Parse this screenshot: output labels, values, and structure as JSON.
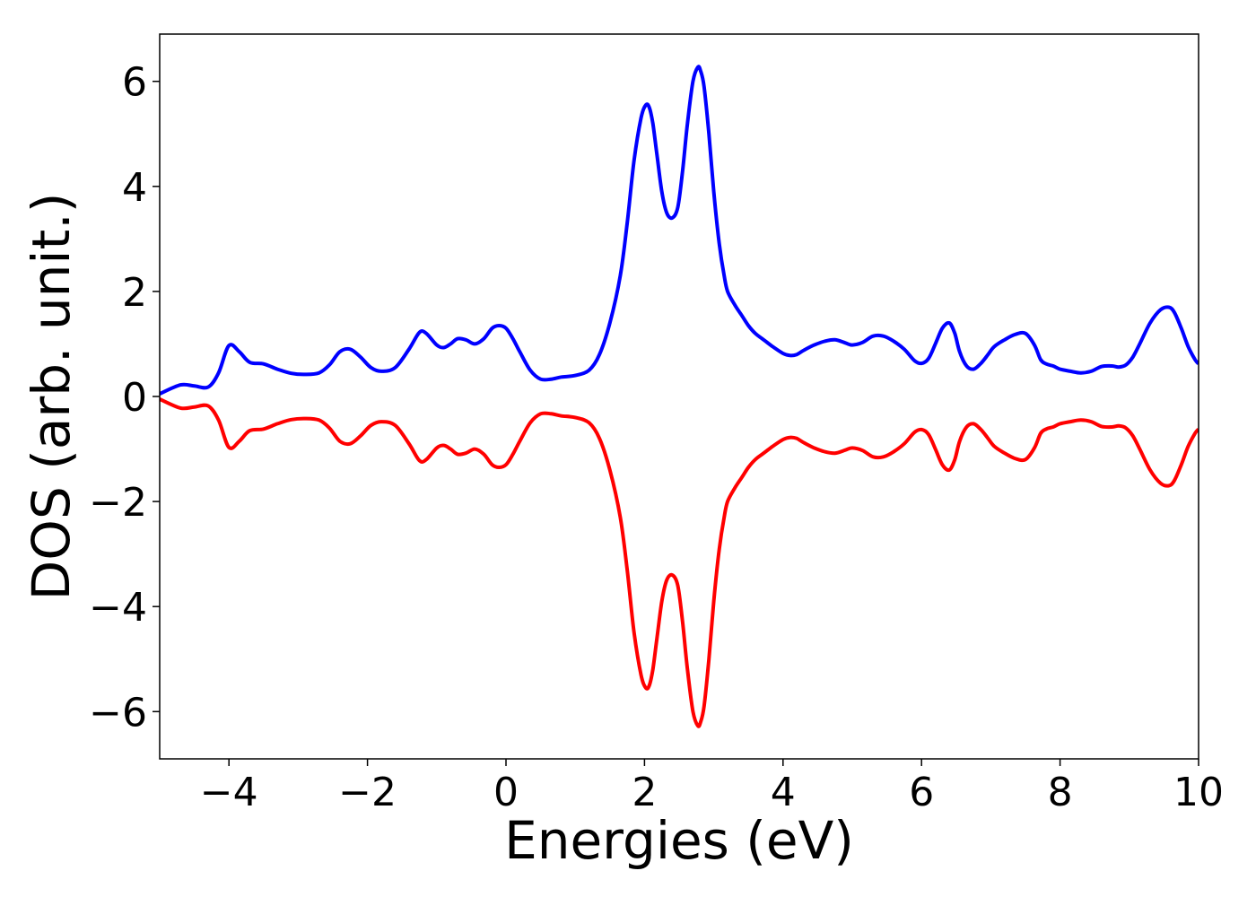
{
  "chart_data": {
    "type": "line",
    "title": "",
    "xlabel": "Energies (eV)",
    "ylabel": "DOS (arb. unit.)",
    "xlim": [
      -5,
      10
    ],
    "ylim": [
      -6.9,
      6.9
    ],
    "x_ticks": [
      -4,
      -2,
      0,
      2,
      4,
      6,
      8,
      10
    ],
    "x_tick_labels": [
      "−4",
      "−2",
      "0",
      "2",
      "4",
      "6",
      "8",
      "10"
    ],
    "y_ticks": [
      -6,
      -4,
      -2,
      0,
      2,
      4,
      6
    ],
    "y_tick_labels": [
      "−6",
      "−4",
      "−2",
      "0",
      "2",
      "4",
      "6"
    ],
    "grid": false,
    "legend": "none",
    "series": [
      {
        "color": "#0000ff",
        "x": [
          -5.0,
          -4.7,
          -4.5,
          -4.3,
          -4.15,
          -4.0,
          -3.85,
          -3.7,
          -3.5,
          -3.3,
          -3.1,
          -2.9,
          -2.7,
          -2.55,
          -2.4,
          -2.25,
          -2.1,
          -1.95,
          -1.8,
          -1.6,
          -1.4,
          -1.25,
          -1.15,
          -1.0,
          -0.9,
          -0.8,
          -0.7,
          -0.58,
          -0.45,
          -0.32,
          -0.2,
          -0.1,
          0.0,
          0.1,
          0.2,
          0.35,
          0.5,
          0.65,
          0.8,
          1.0,
          1.2,
          1.35,
          1.5,
          1.65,
          1.75,
          1.85,
          1.95,
          2.02,
          2.07,
          2.12,
          2.18,
          2.25,
          2.32,
          2.4,
          2.48,
          2.55,
          2.62,
          2.7,
          2.77,
          2.81,
          2.86,
          2.93,
          3.0,
          3.08,
          3.15,
          3.2,
          3.3,
          3.4,
          3.5,
          3.6,
          3.7,
          3.85,
          4.0,
          4.1,
          4.2,
          4.3,
          4.45,
          4.6,
          4.75,
          4.9,
          5.0,
          5.15,
          5.3,
          5.45,
          5.6,
          5.75,
          5.9,
          6.0,
          6.1,
          6.2,
          6.3,
          6.4,
          6.48,
          6.55,
          6.65,
          6.75,
          6.85,
          6.95,
          7.05,
          7.2,
          7.35,
          7.5,
          7.63,
          7.72,
          7.8,
          7.9,
          8.0,
          8.15,
          8.3,
          8.45,
          8.6,
          8.75,
          8.85,
          8.95,
          9.05,
          9.15,
          9.3,
          9.45,
          9.57,
          9.65,
          9.75,
          9.85,
          9.95,
          10.0
        ],
        "y": [
          0.05,
          0.22,
          0.2,
          0.18,
          0.45,
          0.97,
          0.85,
          0.65,
          0.62,
          0.52,
          0.44,
          0.42,
          0.45,
          0.6,
          0.85,
          0.9,
          0.75,
          0.55,
          0.48,
          0.55,
          0.9,
          1.22,
          1.2,
          0.98,
          0.93,
          1.0,
          1.1,
          1.08,
          1.0,
          1.1,
          1.3,
          1.35,
          1.3,
          1.1,
          0.85,
          0.5,
          0.33,
          0.33,
          0.37,
          0.4,
          0.5,
          0.8,
          1.4,
          2.3,
          3.3,
          4.5,
          5.3,
          5.55,
          5.5,
          5.2,
          4.6,
          3.9,
          3.5,
          3.4,
          3.6,
          4.3,
          5.2,
          6.0,
          6.27,
          6.2,
          5.9,
          5.0,
          3.9,
          2.9,
          2.3,
          2.0,
          1.75,
          1.55,
          1.35,
          1.2,
          1.1,
          0.95,
          0.82,
          0.78,
          0.8,
          0.88,
          0.98,
          1.05,
          1.08,
          1.02,
          0.98,
          1.03,
          1.15,
          1.15,
          1.05,
          0.9,
          0.68,
          0.63,
          0.72,
          1.0,
          1.3,
          1.4,
          1.2,
          0.85,
          0.58,
          0.52,
          0.62,
          0.78,
          0.95,
          1.08,
          1.18,
          1.2,
          0.98,
          0.7,
          0.62,
          0.58,
          0.52,
          0.48,
          0.45,
          0.48,
          0.57,
          0.58,
          0.56,
          0.6,
          0.75,
          1.0,
          1.4,
          1.65,
          1.7,
          1.6,
          1.3,
          0.95,
          0.7,
          0.62
        ]
      },
      {
        "color": "#ff0000",
        "x": [
          -5.0,
          -4.7,
          -4.5,
          -4.3,
          -4.15,
          -4.0,
          -3.85,
          -3.7,
          -3.5,
          -3.3,
          -3.1,
          -2.9,
          -2.7,
          -2.55,
          -2.4,
          -2.25,
          -2.1,
          -1.95,
          -1.8,
          -1.6,
          -1.4,
          -1.25,
          -1.15,
          -1.0,
          -0.9,
          -0.8,
          -0.7,
          -0.58,
          -0.45,
          -0.32,
          -0.2,
          -0.1,
          0.0,
          0.1,
          0.2,
          0.35,
          0.5,
          0.65,
          0.8,
          1.0,
          1.2,
          1.35,
          1.5,
          1.65,
          1.75,
          1.85,
          1.95,
          2.02,
          2.07,
          2.12,
          2.18,
          2.25,
          2.32,
          2.4,
          2.48,
          2.55,
          2.62,
          2.7,
          2.77,
          2.81,
          2.86,
          2.93,
          3.0,
          3.08,
          3.15,
          3.2,
          3.3,
          3.4,
          3.5,
          3.6,
          3.7,
          3.85,
          4.0,
          4.1,
          4.2,
          4.3,
          4.45,
          4.6,
          4.75,
          4.9,
          5.0,
          5.15,
          5.3,
          5.45,
          5.6,
          5.75,
          5.9,
          6.0,
          6.1,
          6.2,
          6.3,
          6.4,
          6.48,
          6.55,
          6.65,
          6.75,
          6.85,
          6.95,
          7.05,
          7.2,
          7.35,
          7.5,
          7.63,
          7.72,
          7.8,
          7.9,
          8.0,
          8.15,
          8.3,
          8.45,
          8.6,
          8.75,
          8.85,
          8.95,
          9.05,
          9.15,
          9.3,
          9.45,
          9.57,
          9.65,
          9.75,
          9.85,
          9.95,
          10.0
        ],
        "y": [
          -0.05,
          -0.22,
          -0.2,
          -0.18,
          -0.45,
          -0.97,
          -0.85,
          -0.65,
          -0.62,
          -0.52,
          -0.44,
          -0.42,
          -0.45,
          -0.6,
          -0.85,
          -0.9,
          -0.75,
          -0.55,
          -0.48,
          -0.55,
          -0.9,
          -1.22,
          -1.2,
          -0.98,
          -0.93,
          -1.0,
          -1.1,
          -1.08,
          -1.0,
          -1.1,
          -1.3,
          -1.35,
          -1.3,
          -1.1,
          -0.85,
          -0.5,
          -0.33,
          -0.33,
          -0.37,
          -0.4,
          -0.5,
          -0.8,
          -1.4,
          -2.3,
          -3.3,
          -4.5,
          -5.3,
          -5.55,
          -5.5,
          -5.2,
          -4.6,
          -3.9,
          -3.5,
          -3.4,
          -3.6,
          -4.3,
          -5.2,
          -6.0,
          -6.27,
          -6.2,
          -5.9,
          -5.0,
          -3.9,
          -2.9,
          -2.3,
          -2.0,
          -1.75,
          -1.55,
          -1.35,
          -1.2,
          -1.1,
          -0.95,
          -0.82,
          -0.78,
          -0.8,
          -0.88,
          -0.98,
          -1.05,
          -1.08,
          -1.02,
          -0.98,
          -1.03,
          -1.15,
          -1.15,
          -1.05,
          -0.9,
          -0.68,
          -0.63,
          -0.72,
          -1.0,
          -1.3,
          -1.4,
          -1.2,
          -0.85,
          -0.58,
          -0.52,
          -0.62,
          -0.78,
          -0.95,
          -1.08,
          -1.18,
          -1.2,
          -0.98,
          -0.7,
          -0.62,
          -0.58,
          -0.52,
          -0.48,
          -0.45,
          -0.48,
          -0.57,
          -0.58,
          -0.56,
          -0.6,
          -0.75,
          -1.0,
          -1.4,
          -1.65,
          -1.7,
          -1.6,
          -1.3,
          -0.95,
          -0.7,
          -0.62
        ]
      }
    ]
  }
}
